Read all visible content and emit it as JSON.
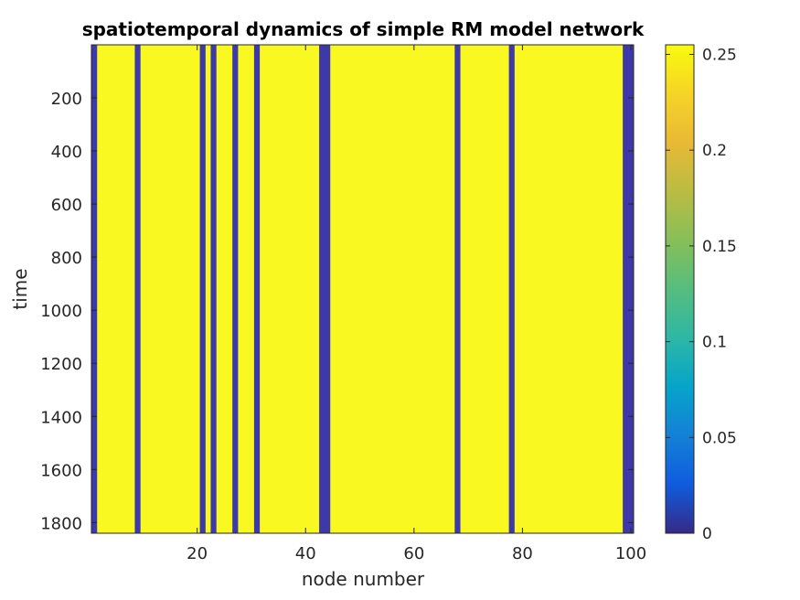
{
  "chart_data": {
    "type": "heatmap",
    "title": "spatiotemporal dynamics of simple RM model network",
    "xlabel": "node number",
    "ylabel": "time",
    "xlim": [
      0.5,
      100.5
    ],
    "ylim": [
      0.5,
      1840
    ],
    "y_direction": "reversed",
    "xticks": [
      20,
      40,
      60,
      80,
      100
    ],
    "yticks": [
      200,
      400,
      600,
      800,
      1000,
      1200,
      1400,
      1600,
      1800
    ],
    "colormap": "parula",
    "clim": [
      0,
      0.255
    ],
    "colorbar": {
      "ticks": [
        0,
        0.05,
        0.1,
        0.15,
        0.2,
        0.25
      ],
      "tick_labels": [
        "0",
        "0.05",
        "0.1",
        "0.15",
        "0.2",
        "0.25"
      ]
    },
    "node_count": 100,
    "default_value": 0.25,
    "zero_nodes": [
      1,
      9,
      21,
      23,
      27,
      31,
      43,
      44,
      68,
      78,
      99,
      100
    ],
    "colors": {
      "high": "#F9F820",
      "low": "#3D39A8"
    }
  }
}
